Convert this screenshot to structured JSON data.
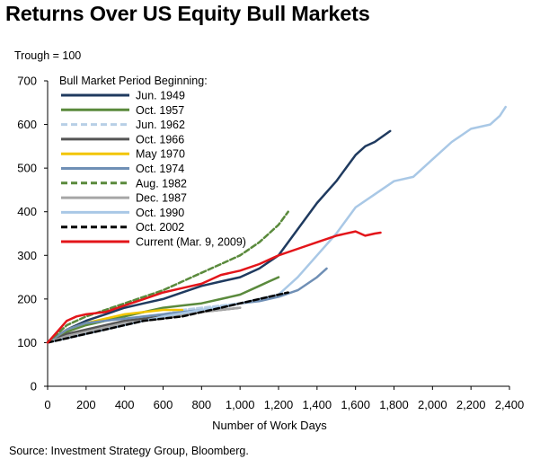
{
  "title": "Returns Over US Equity Bull Markets",
  "subtitle": "Trough = 100",
  "source": "Source: Investment Strategy Group, Bloomberg.",
  "chart_data": {
    "type": "line",
    "xlabel": "Number of Work Days",
    "ylabel": "",
    "xlim": [
      0,
      2400
    ],
    "ylim": [
      0,
      700
    ],
    "xticks": [
      0,
      200,
      400,
      600,
      800,
      1000,
      1200,
      1400,
      1600,
      1800,
      2000,
      2200,
      2400
    ],
    "xtick_labels": [
      "0",
      "200",
      "400",
      "600",
      "800",
      "1,000",
      "1,200",
      "1,400",
      "1,600",
      "1,800",
      "2,000",
      "2,200",
      "2,400"
    ],
    "yticks": [
      0,
      100,
      200,
      300,
      400,
      500,
      600,
      700
    ],
    "ytick_labels": [
      "0",
      "100",
      "200",
      "300",
      "400",
      "500",
      "600",
      "700"
    ],
    "legend_title": "Bull Market Period Beginning:",
    "legend_position": "top-left",
    "series": [
      {
        "name": "Jun. 1949",
        "color": "#1f3a5f",
        "dash": "solid",
        "x": [
          0,
          100,
          200,
          300,
          400,
          500,
          600,
          700,
          800,
          900,
          1000,
          1100,
          1200,
          1300,
          1400,
          1500,
          1550,
          1600,
          1650,
          1700,
          1780
        ],
        "y": [
          100,
          130,
          150,
          165,
          180,
          190,
          200,
          215,
          230,
          240,
          250,
          270,
          300,
          360,
          420,
          470,
          500,
          530,
          550,
          560,
          585
        ]
      },
      {
        "name": "Oct. 1957",
        "color": "#5a8a3c",
        "dash": "solid",
        "x": [
          0,
          100,
          200,
          300,
          400,
          500,
          600,
          700,
          800,
          900,
          1000,
          1100,
          1150,
          1200
        ],
        "y": [
          100,
          125,
          140,
          150,
          160,
          170,
          180,
          185,
          190,
          200,
          210,
          230,
          240,
          250
        ]
      },
      {
        "name": "Jun. 1962",
        "color": "#b8cfe6",
        "dash": "dash",
        "x": [
          0,
          100,
          200,
          300,
          400,
          500,
          600,
          700,
          800,
          900,
          1000
        ],
        "y": [
          100,
          115,
          130,
          140,
          150,
          160,
          165,
          175,
          180,
          185,
          190
        ]
      },
      {
        "name": "Oct. 1966",
        "color": "#555555",
        "dash": "solid",
        "x": [
          0,
          100,
          200,
          300,
          400,
          500,
          600,
          700,
          800,
          900,
          1000
        ],
        "y": [
          100,
          120,
          130,
          140,
          150,
          155,
          160,
          165,
          170,
          175,
          180
        ]
      },
      {
        "name": "May 1970",
        "color": "#f2c500",
        "dash": "solid",
        "x": [
          0,
          100,
          200,
          300,
          400,
          500,
          600,
          700
        ],
        "y": [
          100,
          130,
          145,
          155,
          165,
          170,
          175,
          175
        ]
      },
      {
        "name": "Oct. 1974",
        "color": "#6f8fb5",
        "dash": "solid",
        "x": [
          0,
          100,
          200,
          300,
          400,
          500,
          600,
          700,
          800,
          900,
          1000,
          1100,
          1200,
          1300,
          1400,
          1450
        ],
        "y": [
          100,
          130,
          145,
          150,
          155,
          160,
          165,
          170,
          175,
          180,
          190,
          195,
          205,
          220,
          250,
          270
        ]
      },
      {
        "name": "Aug. 1982",
        "color": "#5a8a3c",
        "dash": "dash",
        "x": [
          0,
          100,
          200,
          300,
          400,
          500,
          600,
          700,
          800,
          900,
          1000,
          1100,
          1200,
          1250
        ],
        "y": [
          100,
          140,
          160,
          175,
          190,
          205,
          220,
          240,
          260,
          280,
          300,
          330,
          370,
          400
        ]
      },
      {
        "name": "Dec. 1987",
        "color": "#a6a6a6",
        "dash": "solid",
        "x": [
          0,
          100,
          200,
          300,
          400,
          500,
          600,
          700,
          800,
          900,
          1000
        ],
        "y": [
          100,
          115,
          125,
          135,
          145,
          150,
          155,
          165,
          170,
          175,
          180
        ]
      },
      {
        "name": "Oct. 1990",
        "color": "#a9c8e6",
        "dash": "solid",
        "x": [
          0,
          200,
          400,
          600,
          800,
          1000,
          1200,
          1300,
          1400,
          1500,
          1600,
          1700,
          1800,
          1900,
          2000,
          2100,
          2200,
          2300,
          2350,
          2380
        ],
        "y": [
          100,
          120,
          140,
          160,
          175,
          190,
          210,
          250,
          300,
          350,
          410,
          440,
          470,
          480,
          520,
          560,
          590,
          600,
          620,
          640
        ]
      },
      {
        "name": "Oct. 2002",
        "color": "#000000",
        "dash": "dash",
        "x": [
          0,
          100,
          200,
          300,
          400,
          500,
          600,
          700,
          800,
          900,
          1000,
          1100,
          1200,
          1250
        ],
        "y": [
          100,
          110,
          120,
          130,
          140,
          150,
          155,
          160,
          170,
          180,
          190,
          200,
          210,
          215
        ]
      },
      {
        "name": "Current (Mar. 9, 2009)",
        "color": "#e3151a",
        "dash": "solid",
        "x": [
          0,
          50,
          100,
          150,
          200,
          300,
          400,
          500,
          600,
          700,
          800,
          900,
          1000,
          1100,
          1200,
          1300,
          1400,
          1500,
          1600,
          1650,
          1700,
          1730
        ],
        "y": [
          100,
          125,
          150,
          160,
          165,
          170,
          185,
          200,
          215,
          225,
          235,
          255,
          265,
          280,
          300,
          315,
          330,
          345,
          355,
          345,
          350,
          352
        ]
      }
    ]
  }
}
